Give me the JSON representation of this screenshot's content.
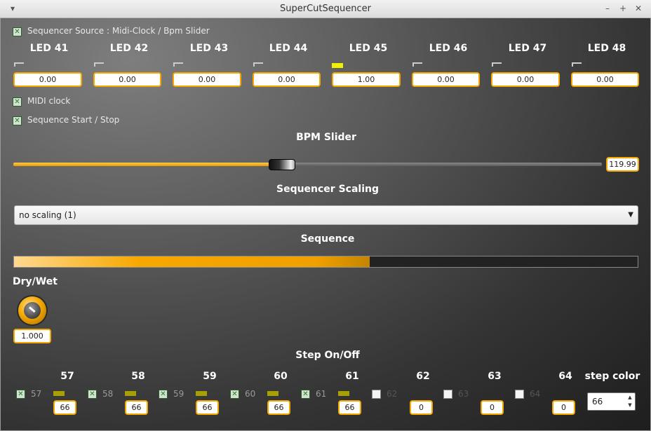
{
  "window": {
    "title": "SuperCutSequencer"
  },
  "source": {
    "checked": true,
    "label": "Sequencer Source : Midi-Clock / Bpm Slider"
  },
  "leds": [
    {
      "label": "LED 41",
      "value": "0.00",
      "on": false
    },
    {
      "label": "LED 42",
      "value": "0.00",
      "on": false
    },
    {
      "label": "LED 43",
      "value": "0.00",
      "on": false
    },
    {
      "label": "LED 44",
      "value": "0.00",
      "on": false
    },
    {
      "label": "LED 45",
      "value": "1.00",
      "on": true
    },
    {
      "label": "LED 46",
      "value": "0.00",
      "on": false
    },
    {
      "label": "LED 47",
      "value": "0.00",
      "on": false
    },
    {
      "label": "LED 48",
      "value": "0.00",
      "on": false
    }
  ],
  "midi_clock": {
    "checked": true,
    "label": "MIDI clock"
  },
  "seq_start": {
    "checked": true,
    "label": "Sequence Start / Stop"
  },
  "bpm": {
    "heading": "BPM Slider",
    "value": "119.99",
    "fraction": 0.41
  },
  "scaling": {
    "heading": "Sequencer Scaling",
    "selected": "no scaling (1)"
  },
  "sequence": {
    "heading": "Sequence",
    "progress": 0.57
  },
  "drywet": {
    "heading": "Dry/Wet",
    "value": "1.000"
  },
  "steps": {
    "heading": "Step On/Off",
    "items": [
      {
        "num": "57",
        "checked": true,
        "label": "57",
        "value": "66"
      },
      {
        "num": "58",
        "checked": true,
        "label": "58",
        "value": "66"
      },
      {
        "num": "59",
        "checked": true,
        "label": "59",
        "value": "66"
      },
      {
        "num": "60",
        "checked": true,
        "label": "60",
        "value": "66"
      },
      {
        "num": "61",
        "checked": true,
        "label": "61",
        "value": "66"
      },
      {
        "num": "62",
        "checked": false,
        "label": "62",
        "value": "0"
      },
      {
        "num": "63",
        "checked": false,
        "label": "63",
        "value": "0"
      },
      {
        "num": "64",
        "checked": false,
        "label": "64",
        "value": "0"
      }
    ]
  },
  "step_color": {
    "label": "step color",
    "value": "66"
  },
  "colors": {
    "accent": "#f2a800",
    "led_on": "#f0f000",
    "step_on": "#a8a000"
  }
}
